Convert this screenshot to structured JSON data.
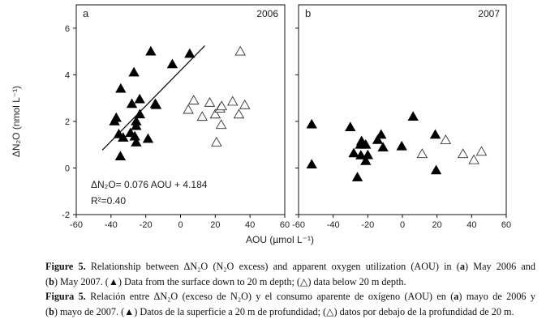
{
  "chart_data": [
    {
      "type": "scatter",
      "panel_label": "a",
      "year_label": "2006",
      "xlim": [
        -60,
        60
      ],
      "ylim": [
        -2,
        7
      ],
      "x_ticks": [
        -60,
        -40,
        -20,
        0,
        20,
        40,
        60
      ],
      "y_ticks": [
        -2,
        0,
        2,
        4,
        6
      ],
      "series": [
        {
          "name": "surface to 20 m",
          "marker": "filled-triangle",
          "points": [
            [
              -17.1,
              5.0
            ],
            [
              5.3,
              4.9
            ],
            [
              -4.7,
              4.45
            ],
            [
              -26.8,
              4.1
            ],
            [
              -34.4,
              3.4
            ],
            [
              -28,
              2.75
            ],
            [
              -23.5,
              2.95
            ],
            [
              -14.5,
              2.75
            ],
            [
              -14,
              2.7
            ],
            [
              -23.4,
              2.3
            ],
            [
              -37,
              2.15
            ],
            [
              -38,
              2.0
            ],
            [
              -25.5,
              2.0
            ],
            [
              -25.5,
              1.8
            ],
            [
              -35.5,
              1.45
            ],
            [
              -33,
              1.3
            ],
            [
              -28.8,
              1.5
            ],
            [
              -26.3,
              1.35
            ],
            [
              -25.5,
              1.1
            ],
            [
              -18.7,
              1.25
            ],
            [
              -34.6,
              0.5
            ]
          ]
        },
        {
          "name": "below 20 m",
          "marker": "open-triangle",
          "points": [
            [
              4.5,
              2.5
            ],
            [
              7.6,
              2.9
            ],
            [
              12.5,
              2.2
            ],
            [
              16.8,
              2.8
            ],
            [
              20,
              2.3
            ],
            [
              22.7,
              2.55
            ],
            [
              23.7,
              2.65
            ],
            [
              23.4,
              1.85
            ],
            [
              20.7,
              1.1
            ],
            [
              30,
              2.85
            ],
            [
              33.6,
              2.3
            ],
            [
              37,
              2.7
            ],
            [
              34.4,
              5.0
            ]
          ]
        }
      ],
      "regression": {
        "x_range": [
          -45,
          14
        ],
        "slope": 0.076,
        "intercept": 4.184,
        "equation": "ΔN₂O= 0.076 AOU + 4.184",
        "r2": "R²=0.40"
      }
    },
    {
      "type": "scatter",
      "panel_label": "b",
      "year_label": "2007",
      "xlim": [
        -60,
        60
      ],
      "ylim": [
        -2,
        7
      ],
      "x_ticks": [
        -60,
        -40,
        -20,
        0,
        20,
        40,
        60
      ],
      "y_ticks": [
        -2,
        0,
        2,
        4,
        6
      ],
      "series": [
        {
          "name": "surface to 20 m",
          "marker": "filled-triangle",
          "points": [
            [
              -52.4,
              1.87
            ],
            [
              -52.4,
              0.15
            ],
            [
              -30.1,
              1.75
            ],
            [
              6.2,
              2.2
            ],
            [
              19,
              1.43
            ],
            [
              19.5,
              -0.1
            ],
            [
              -26,
              -0.4
            ],
            [
              -12.3,
              1.43
            ],
            [
              -14.3,
              1.2
            ],
            [
              -11.2,
              0.88
            ],
            [
              -0.4,
              0.93
            ],
            [
              -23.6,
              1.15
            ],
            [
              -24.3,
              1.0
            ],
            [
              -21.2,
              1.0
            ],
            [
              -28.1,
              0.63
            ],
            [
              -24,
              0.54
            ],
            [
              -20,
              0.55
            ],
            [
              -21.2,
              0.3
            ]
          ]
        },
        {
          "name": "below 20 m",
          "marker": "open-triangle",
          "points": [
            [
              11.4,
              0.6
            ],
            [
              25,
              1.2
            ],
            [
              35,
              0.6
            ],
            [
              41.3,
              0.34
            ],
            [
              45.7,
              0.7
            ]
          ]
        }
      ]
    }
  ],
  "ylabel": "ΔN₂O (nmol L⁻¹)",
  "xlabel": "AOU (µmol L⁻¹)",
  "caption": [
    [
      {
        "t": "Figure 5.",
        "b": true
      },
      {
        "t": " Relationship between ΔN₂O (N₂O excess) and apparent oxygen utilization (AOU) in ("
      },
      {
        "t": "a",
        "b": true
      },
      {
        "t": ") May 2006 and"
      }
    ],
    [
      {
        "t": "("
      },
      {
        "t": "b",
        "b": true
      },
      {
        "t": ") May 2007. (▲) Data from the surface down to 20 m depth; (△) data below 20 m depth."
      }
    ],
    [
      {
        "t": "Figura 5.",
        "b": true
      },
      {
        "t": " Relación entre ΔN₂O (exceso de N₂O) y el consumo aparente de oxígeno (AOU) en ("
      },
      {
        "t": "a",
        "b": true
      },
      {
        "t": ") mayo de 2006 y"
      }
    ],
    [
      {
        "t": "("
      },
      {
        "t": "b",
        "b": true
      },
      {
        "t": ") mayo de 2007. (▲) Datos de la superficie a 20 m de profundidad; (△) datos por debajo de la profundidad de 20 m."
      }
    ]
  ]
}
